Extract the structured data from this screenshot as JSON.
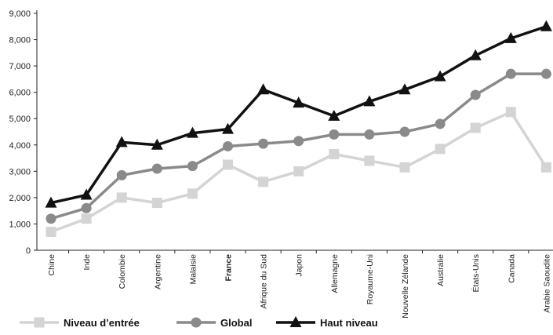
{
  "chart_data": {
    "type": "line",
    "title": "",
    "xlabel": "",
    "ylabel": "",
    "ylim": [
      0,
      9000
    ],
    "yticks": [
      "0",
      "1,000",
      "2,000",
      "3,000",
      "4,000",
      "5,000",
      "6,000",
      "7,000",
      "8,000",
      "9,000"
    ],
    "categories": [
      "Chine",
      "Inde",
      "Colombie",
      "Argentine",
      "Malaisie",
      "France",
      "Afrique du Sud",
      "Japon",
      "Allemagne",
      "Royaume-Uni",
      "Nouvelle Zélande",
      "Australie",
      "États-Unis",
      "Canada",
      "Arabie Saoudite"
    ],
    "highlighted_category": "France",
    "grid": false,
    "legend_position": "bottom",
    "series": [
      {
        "name": "Niveau d’entrée",
        "color": "#d4d4d4",
        "marker": "square",
        "values": [
          700,
          1200,
          2000,
          1800,
          2150,
          3250,
          2600,
          3000,
          3650,
          3400,
          3150,
          3850,
          4650,
          5250,
          3150
        ]
      },
      {
        "name": "Global",
        "color": "#8a8a8a",
        "marker": "circle",
        "values": [
          1200,
          1600,
          2850,
          3100,
          3200,
          3950,
          4050,
          4150,
          4400,
          4400,
          4500,
          4800,
          5900,
          6700,
          6700
        ]
      },
      {
        "name": "Haut niveau",
        "color": "#111111",
        "marker": "triangle",
        "values": [
          1800,
          2100,
          4100,
          4000,
          4450,
          4600,
          6100,
          5600,
          5100,
          5650,
          6100,
          6600,
          7400,
          8050,
          8500
        ]
      }
    ]
  }
}
